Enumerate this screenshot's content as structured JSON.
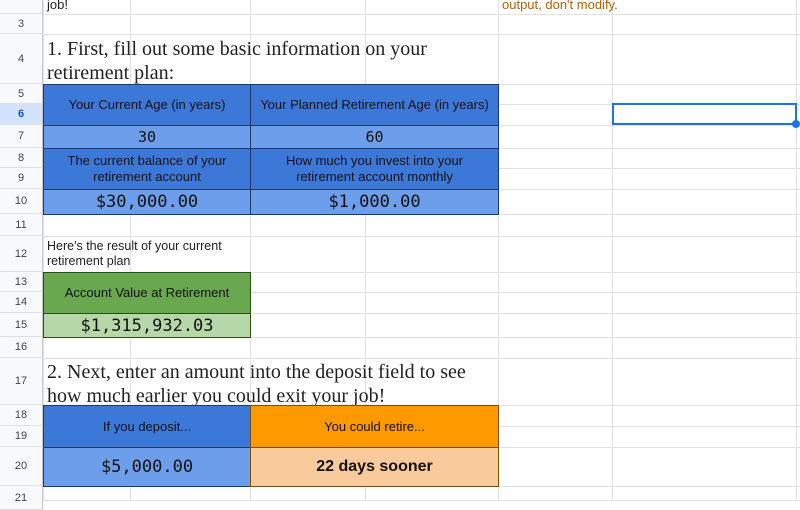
{
  "rows": [
    "3",
    "4",
    "5",
    "6",
    "7",
    "8",
    "9",
    "10",
    "11",
    "12",
    "13",
    "14",
    "15",
    "16",
    "17",
    "18",
    "19",
    "20",
    "21"
  ],
  "selected_row": "6",
  "top_text": {
    "left": "job!",
    "right": "output, don't modify."
  },
  "section1": {
    "heading": "1. First, fill out some basic information on your retirement plan:",
    "current_age_label": "Your Current Age (in years)",
    "current_age_value": "30",
    "retire_age_label": "Your Planned Retirement Age (in years)",
    "retire_age_value": "60",
    "balance_label": "The current balance of your retirement account",
    "balance_value": "$30,000.00",
    "monthly_label": "How much you invest into your retirement account monthly",
    "monthly_value": "$1,000.00"
  },
  "result": {
    "intro": "Here's the result of your current retirement plan",
    "label": "Account Value at Retirement",
    "value": "$1,315,932.03"
  },
  "section2": {
    "heading": "2. Next, enter an amount into the deposit field to see how much earlier you could exit your job!",
    "deposit_label": "If you deposit...",
    "deposit_value": "$5,000.00",
    "retire_label": "You could retire...",
    "retire_value": "22 days sooner"
  },
  "colors": {
    "header_blue": "#3c78d8",
    "input_blue": "#6d9eeb",
    "green": "#6aa84f",
    "light_green": "#b6d7a8",
    "orange": "#ff9900",
    "light_orange": "#f9cb9c",
    "note": "#b45f06",
    "selection": "#1a73e8"
  }
}
